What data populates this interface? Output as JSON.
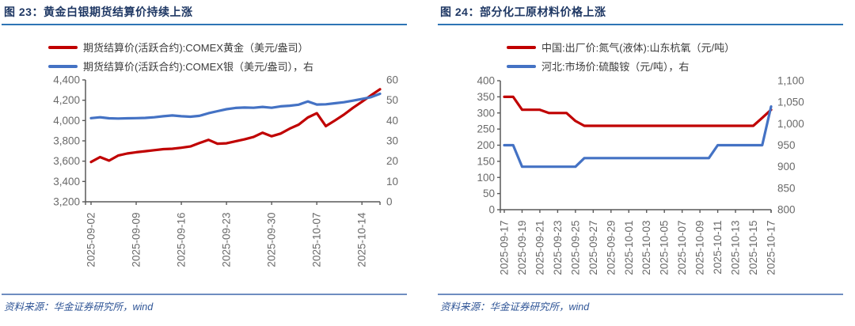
{
  "colors": {
    "accent_title": "#1f3864",
    "title_rule": "#2e74b5",
    "source_rule": "#6f8dc0",
    "source_text": "#2e5496",
    "axis_line": "#595959",
    "axis_text": "#6a6a6a",
    "series_red": "#c00000",
    "series_blue": "#4472c4"
  },
  "charts": [
    {
      "title": "图 23：黄金白银期货结算价持续上涨",
      "source": "资料来源：华金证券研究所，wind",
      "chart_data": {
        "type": "line",
        "x": [
          "2025-09-02",
          "2025-09-03",
          "2025-09-04",
          "2025-09-05",
          "2025-09-08",
          "2025-09-09",
          "2025-09-10",
          "2025-09-11",
          "2025-09-12",
          "2025-09-15",
          "2025-09-16",
          "2025-09-17",
          "2025-09-18",
          "2025-09-19",
          "2025-09-22",
          "2025-09-23",
          "2025-09-24",
          "2025-09-25",
          "2025-09-26",
          "2025-09-29",
          "2025-09-30",
          "2025-10-01",
          "2025-10-02",
          "2025-10-03",
          "2025-10-06",
          "2025-10-07",
          "2025-10-08",
          "2025-10-09",
          "2025-10-10",
          "2025-10-13",
          "2025-10-14",
          "2025-10-15",
          "2025-10-16"
        ],
        "x_tick_labels": [
          "2025-09-02",
          "2025-09-09",
          "2025-09-16",
          "2025-09-23",
          "2025-09-30",
          "2025-10-07",
          "2025-10-14"
        ],
        "y_left": {
          "min": 3200,
          "max": 4400,
          "step": 200
        },
        "y_right": {
          "min": 0,
          "max": 60,
          "step": 10
        },
        "legend_position": "top",
        "grid": false,
        "series": [
          {
            "name": "期货结算价(活跃合约):COMEX黄金（美元/盎司）",
            "axis": "left",
            "color_key": "series_red",
            "values": [
              3592,
              3640,
              3605,
              3655,
              3675,
              3688,
              3698,
              3708,
              3718,
              3722,
              3732,
              3745,
              3778,
              3810,
              3772,
              3776,
              3795,
              3815,
              3838,
              3880,
              3845,
              3872,
              3920,
              3960,
              4030,
              4072,
              3945,
              4000,
              4058,
              4125,
              4185,
              4248,
              4308
            ]
          },
          {
            "name": "期货结算价(活跃合约):COMEX银（美元/盎司），右",
            "axis": "right",
            "color_key": "series_blue",
            "values": [
              41.2,
              41.6,
              41.1,
              41.0,
              41.1,
              41.2,
              41.3,
              41.6,
              42.1,
              42.5,
              42.1,
              41.9,
              42.3,
              43.6,
              44.6,
              45.6,
              46.2,
              46.4,
              46.3,
              46.7,
              46.3,
              47.0,
              47.3,
              47.8,
              49.4,
              47.9,
              48.0,
              48.5,
              49.0,
              49.8,
              50.6,
              51.5,
              53.2
            ]
          }
        ]
      }
    },
    {
      "title": "图 24：部分化工原材料价格上涨",
      "source": "资料来源：华金证券研究所，wind",
      "chart_data": {
        "type": "line",
        "x": [
          "2025-09-17",
          "2025-09-18",
          "2025-09-19",
          "2025-09-20",
          "2025-09-21",
          "2025-09-22",
          "2025-09-23",
          "2025-09-24",
          "2025-09-25",
          "2025-09-26",
          "2025-09-27",
          "2025-09-28",
          "2025-09-29",
          "2025-09-30",
          "2025-10-01",
          "2025-10-02",
          "2025-10-03",
          "2025-10-04",
          "2025-10-05",
          "2025-10-06",
          "2025-10-07",
          "2025-10-08",
          "2025-10-09",
          "2025-10-10",
          "2025-10-11",
          "2025-10-12",
          "2025-10-13",
          "2025-10-14",
          "2025-10-15",
          "2025-10-16",
          "2025-10-17"
        ],
        "x_tick_labels": [
          "2025-09-17",
          "2025-09-19",
          "2025-09-21",
          "2025-09-23",
          "2025-09-25",
          "2025-09-27",
          "2025-09-29",
          "2025-10-01",
          "2025-10-03",
          "2025-10-05",
          "2025-10-07",
          "2025-10-09",
          "2025-10-11",
          "2025-10-13",
          "2025-10-15",
          "2025-10-17"
        ],
        "y_left": {
          "min": 0,
          "max": 400,
          "step": 50
        },
        "y_right": {
          "min": 800,
          "max": 1100,
          "step": 50
        },
        "legend_position": "top",
        "grid": false,
        "series": [
          {
            "name": "中国:出厂价:氮气(液体):山东杭氧（元/吨）",
            "axis": "left",
            "color_key": "series_red",
            "values": [
              350,
              350,
              310,
              310,
              310,
              300,
              300,
              300,
              275,
              260,
              260,
              260,
              260,
              260,
              260,
              260,
              260,
              260,
              260,
              260,
              260,
              260,
              260,
              260,
              260,
              260,
              260,
              260,
              260,
              285,
              310
            ]
          },
          {
            "name": "河北:市场价:硫酸铵（元/吨），右",
            "axis": "right",
            "color_key": "series_blue",
            "values": [
              950,
              950,
              900,
              900,
              900,
              900,
              900,
              900,
              900,
              920,
              920,
              920,
              920,
              920,
              920,
              920,
              920,
              920,
              920,
              920,
              920,
              920,
              920,
              920,
              950,
              950,
              950,
              950,
              950,
              950,
              1040
            ]
          }
        ]
      }
    }
  ]
}
